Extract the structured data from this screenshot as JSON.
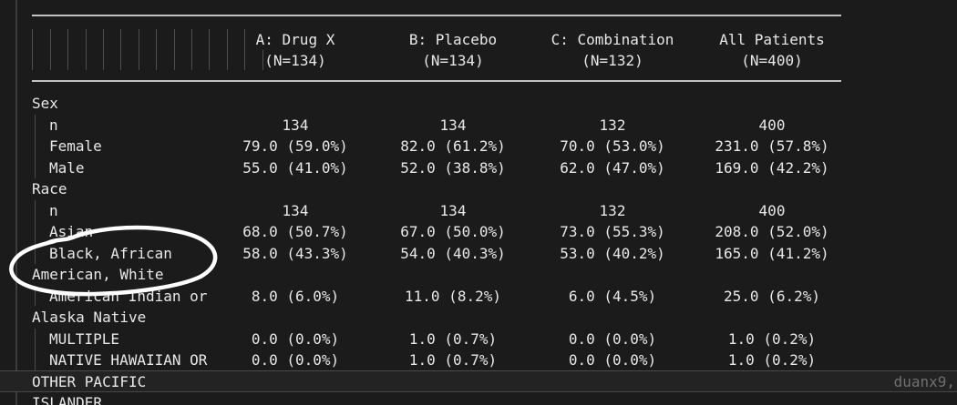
{
  "window": {
    "watermark": "duanx9,",
    "background_color": "#1b1b1b",
    "text_color": "#e8e8e8",
    "rule_color": "#c2c2c2",
    "guide_color": "#4f4f4f",
    "highlight_border_color": "#4b4b4b",
    "watermark_color": "#6f6f6f"
  },
  "table": {
    "columns": [
      {
        "name": "A: Drug X",
        "enrollment": "(N=134)"
      },
      {
        "name": "B: Placebo",
        "enrollment": "(N=134)"
      },
      {
        "name": "C: Combination",
        "enrollment": "(N=132)"
      },
      {
        "name": "All Patients",
        "enrollment": "(N=400)"
      }
    ],
    "rows": [
      {
        "label": "Sex",
        "a": "",
        "b": "",
        "c": "",
        "all": ""
      },
      {
        "label": "n",
        "a": "134",
        "b": "134",
        "c": "132",
        "all": "400"
      },
      {
        "label": "Female",
        "a": "79.0 (59.0%)",
        "b": "82.0 (61.2%)",
        "c": "70.0 (53.0%)",
        "all": "231.0 (57.8%)"
      },
      {
        "label": "Male",
        "a": "55.0 (41.0%)",
        "b": "52.0 (38.8%)",
        "c": "62.0 (47.0%)",
        "all": "169.0 (42.2%)"
      },
      {
        "label": "Race",
        "a": "",
        "b": "",
        "c": "",
        "all": ""
      },
      {
        "label": "n",
        "a": "134",
        "b": "134",
        "c": "132",
        "all": "400"
      },
      {
        "label": "Asian",
        "a": "68.0 (50.7%)",
        "b": "67.0 (50.0%)",
        "c": "73.0 (55.3%)",
        "all": "208.0 (52.0%)"
      },
      {
        "label": "Black, African",
        "a": "58.0 (43.3%)",
        "b": "54.0 (40.3%)",
        "c": "53.0 (40.2%)",
        "all": "165.0 (41.2%)"
      },
      {
        "label": "American, White",
        "a": "",
        "b": "",
        "c": "",
        "all": ""
      },
      {
        "label": "American Indian or",
        "a": "8.0 (6.0%)",
        "b": "11.0 (8.2%)",
        "c": "6.0 (4.5%)",
        "all": "25.0 (6.2%)"
      },
      {
        "label": "Alaska Native",
        "a": "",
        "b": "",
        "c": "",
        "all": ""
      },
      {
        "label": "MULTIPLE",
        "a": "0.0 (0.0%)",
        "b": "1.0 (0.7%)",
        "c": "0.0 (0.0%)",
        "all": "1.0 (0.2%)"
      },
      {
        "label": "NATIVE HAWAIIAN OR",
        "a": "0.0 (0.0%)",
        "b": "1.0 (0.7%)",
        "c": "0.0 (0.0%)",
        "all": "1.0 (0.2%)"
      },
      {
        "label": "OTHER PACIFIC",
        "a": "",
        "b": "",
        "c": "",
        "all": ""
      },
      {
        "label": "ISLANDER",
        "a": "",
        "b": "",
        "c": "",
        "all": ""
      }
    ]
  },
  "annotation": {
    "type": "hand-drawn-circle",
    "color": "#ffffff",
    "target": "Black, African American, White"
  }
}
